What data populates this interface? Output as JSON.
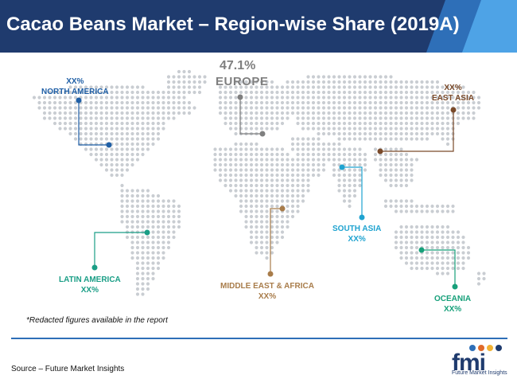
{
  "title": "Cacao Beans Market – Region-wise Share (2019A)",
  "regions": {
    "north_america": {
      "value": "XX%",
      "name": "NORTH AMERICA",
      "color": "#1f5fa6"
    },
    "europe": {
      "value": "47.1%",
      "name": "EUROPE",
      "color": "#7f7f7f"
    },
    "east_asia": {
      "value": "XX%",
      "name": "EAST ASIA",
      "color": "#7a4a2a"
    },
    "south_asia": {
      "value": "XX%",
      "name": "SOUTH ASIA",
      "color": "#1fa3d0"
    },
    "latin_america": {
      "value": "XX%",
      "name": "LATIN AMERICA",
      "color": "#1a9e86"
    },
    "middle_east_africa": {
      "value": "XX%",
      "name": "MIDDLE EAST & AFRICA",
      "color": "#a87c4a"
    },
    "oceania": {
      "value": "XX%",
      "name": "OCEANIA",
      "color": "#17a07a"
    }
  },
  "note": "*Redacted figures available in the report",
  "source": "Source – Future Market Insights",
  "logo": {
    "letters": "fmi",
    "tagline": "Future Market Insights"
  }
}
